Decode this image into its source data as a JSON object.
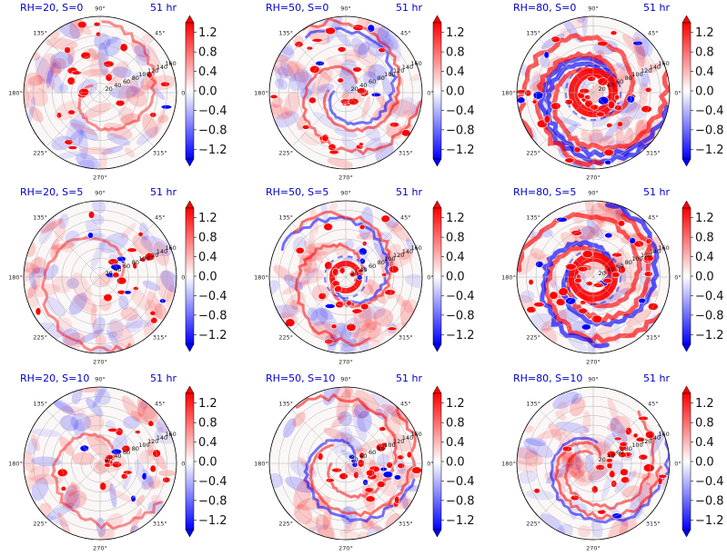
{
  "figure": {
    "colors": {
      "positive": "#ff0000",
      "negative": "#0000ff",
      "neutral": "#ffffff",
      "title": "#0000cc"
    },
    "angle_ticks": [
      "0°",
      "45°",
      "90°",
      "135°",
      "180°",
      "225°",
      "270°",
      "315°"
    ],
    "radial_ticks": [
      "20",
      "40",
      "60",
      "80",
      "100",
      "120",
      "140",
      "160"
    ],
    "colorbar_ticks": [
      "1.2",
      "0.8",
      "0.4",
      "0.0",
      "−0.4",
      "−0.8",
      "−1.2"
    ],
    "colormap": "bwr"
  },
  "chart_data": [
    {
      "type": "heatmap",
      "projection": "polar",
      "title": "RH=20, S=0",
      "time_label": "51 hr",
      "rlim": [
        0,
        160
      ],
      "clim": [
        -1.4,
        1.4
      ],
      "pattern": "scattered convective cells",
      "intensity": "weak"
    },
    {
      "type": "heatmap",
      "projection": "polar",
      "title": "RH=50, S=0",
      "time_label": "51 hr",
      "rlim": [
        0,
        160
      ],
      "clim": [
        -1.4,
        1.4
      ],
      "pattern": "spiral rainbands with scattered cells",
      "intensity": "moderate"
    },
    {
      "type": "heatmap",
      "projection": "polar",
      "title": "RH=80, S=0",
      "time_label": "51 hr",
      "rlim": [
        0,
        160
      ],
      "clim": [
        -1.4,
        1.4
      ],
      "pattern": "strong eyewall ring and spiral bands",
      "intensity": "strong"
    },
    {
      "type": "heatmap",
      "projection": "polar",
      "title": "RH=20, S=5",
      "time_label": "51 hr",
      "rlim": [
        0,
        160
      ],
      "clim": [
        -1.4,
        1.4
      ],
      "pattern": "scattered cells, northeast asymmetry",
      "intensity": "weak"
    },
    {
      "type": "heatmap",
      "projection": "polar",
      "title": "RH=50, S=5",
      "time_label": "51 hr",
      "rlim": [
        0,
        160
      ],
      "clim": [
        -1.4,
        1.4
      ],
      "pattern": "partial eyewall ring with outer cells",
      "intensity": "moderate"
    },
    {
      "type": "heatmap",
      "projection": "polar",
      "title": "RH=80, S=5",
      "time_label": "51 hr",
      "rlim": [
        0,
        160
      ],
      "clim": [
        -1.4,
        1.4
      ],
      "pattern": "closed eyewall ring and spiral bands",
      "intensity": "strong"
    },
    {
      "type": "heatmap",
      "projection": "polar",
      "title": "RH=20, S=10",
      "time_label": "51 hr",
      "rlim": [
        0,
        160
      ],
      "clim": [
        -1.4,
        1.4
      ],
      "pattern": "cells concentrated to the east",
      "intensity": "weak"
    },
    {
      "type": "heatmap",
      "projection": "polar",
      "title": "RH=50, S=10",
      "time_label": "51 hr",
      "rlim": [
        0,
        160
      ],
      "clim": [
        -1.4,
        1.4
      ],
      "pattern": "strong asymmetric convection northeast",
      "intensity": "moderate"
    },
    {
      "type": "heatmap",
      "projection": "polar",
      "title": "RH=80, S=10",
      "time_label": "51 hr",
      "rlim": [
        0,
        160
      ],
      "clim": [
        -1.4,
        1.4
      ],
      "pattern": "asymmetric convection northeast and east",
      "intensity": "moderate"
    }
  ]
}
